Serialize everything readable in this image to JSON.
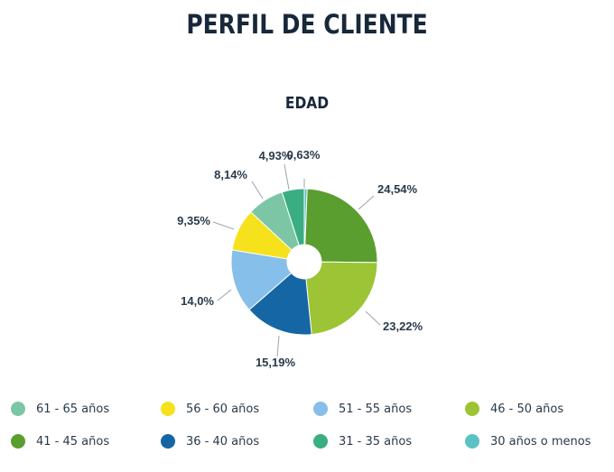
{
  "header": {
    "title": "PERFIL DE CLIENTE"
  },
  "chart_data": {
    "type": "pie",
    "title": "EDAD",
    "donut": true,
    "slices": [
      {
        "label": "30 años o menos",
        "value": 0.63,
        "value_label": "0,63%",
        "color": "#5bc2c4"
      },
      {
        "label": "41 - 45 años",
        "value": 24.54,
        "value_label": "24,54%",
        "color": "#5a9e2f"
      },
      {
        "label": "46 - 50 años",
        "value": 23.22,
        "value_label": "23,22%",
        "color": "#9cc434"
      },
      {
        "label": "36 - 40 años",
        "value": 15.19,
        "value_label": "15,19%",
        "color": "#1566a4"
      },
      {
        "label": "51 - 55 años",
        "value": 14.0,
        "value_label": "14,0%",
        "color": "#86bfea"
      },
      {
        "label": "56 - 60 años",
        "value": 9.35,
        "value_label": "9,35%",
        "color": "#f6e11d"
      },
      {
        "label": "61 - 65 años",
        "value": 8.14,
        "value_label": "8,14%",
        "color": "#7cc6a6"
      },
      {
        "label": "31 - 35 años",
        "value": 4.93,
        "value_label": "4,93%",
        "color": "#3aae82"
      }
    ],
    "legend": [
      {
        "label": "61 - 65 años",
        "color": "#7cc6a6"
      },
      {
        "label": "56 - 60 años",
        "color": "#f6e11d"
      },
      {
        "label": "51 - 55 años",
        "color": "#86bfea"
      },
      {
        "label": "46 - 50 años",
        "color": "#9cc434"
      },
      {
        "label": "41 - 45 años",
        "color": "#5a9e2f"
      },
      {
        "label": "36 - 40 años",
        "color": "#1566a4"
      },
      {
        "label": "31 - 35 años",
        "color": "#3aae82"
      },
      {
        "label": "30 años o menos",
        "color": "#5bc2c4"
      }
    ]
  }
}
